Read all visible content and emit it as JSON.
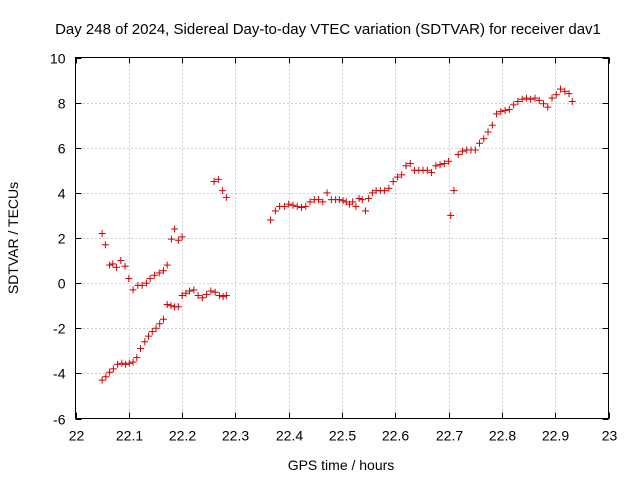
{
  "chart_data": {
    "type": "scatter",
    "title": "Day 248 of 2024, Sidereal Day-to-day VTEC variation (SDTVAR) for receiver dav1",
    "xlabel": "GPS time / hours",
    "ylabel": "SDTVAR / TECUs",
    "xlim": [
      22,
      23
    ],
    "ylim": [
      -6,
      10
    ],
    "xticks": [
      22,
      22.1,
      22.2,
      22.3,
      22.4,
      22.5,
      22.6,
      22.7,
      22.8,
      22.9,
      23
    ],
    "xtick_labels": [
      "22",
      "22.1",
      "22.2",
      "22.3",
      "22.4",
      "22.5",
      "22.6",
      "22.7",
      "22.8",
      "22.9",
      "23"
    ],
    "yticks": [
      -6,
      -4,
      -2,
      0,
      2,
      4,
      6,
      8,
      10
    ],
    "ytick_labels": [
      "-6",
      "-4",
      "-2",
      "0",
      "2",
      "4",
      "6",
      "8",
      "10"
    ],
    "grid": true,
    "marker": "+",
    "color": "#d00000",
    "series": [
      {
        "name": "dav1",
        "points": [
          [
            22.05,
            2.2
          ],
          [
            22.056,
            1.7
          ],
          [
            22.064,
            0.8
          ],
          [
            22.07,
            0.85
          ],
          [
            22.077,
            0.7
          ],
          [
            22.085,
            1.0
          ],
          [
            22.093,
            0.75
          ],
          [
            22.1,
            0.2
          ],
          [
            22.108,
            -0.3
          ],
          [
            22.117,
            -0.1
          ],
          [
            22.125,
            -0.1
          ],
          [
            22.133,
            0.0
          ],
          [
            22.14,
            0.2
          ],
          [
            22.148,
            0.35
          ],
          [
            22.157,
            0.45
          ],
          [
            22.165,
            0.55
          ],
          [
            22.172,
            0.8
          ],
          [
            22.18,
            1.95
          ],
          [
            22.186,
            2.4
          ],
          [
            22.193,
            1.9
          ],
          [
            22.2,
            2.05
          ],
          [
            22.05,
            -4.3
          ],
          [
            22.057,
            -4.15
          ],
          [
            22.064,
            -3.95
          ],
          [
            22.071,
            -3.8
          ],
          [
            22.079,
            -3.6
          ],
          [
            22.087,
            -3.55
          ],
          [
            22.094,
            -3.6
          ],
          [
            22.101,
            -3.55
          ],
          [
            22.108,
            -3.5
          ],
          [
            22.115,
            -3.3
          ],
          [
            22.122,
            -2.9
          ],
          [
            22.13,
            -2.6
          ],
          [
            22.137,
            -2.35
          ],
          [
            22.144,
            -2.15
          ],
          [
            22.151,
            -2.0
          ],
          [
            22.158,
            -1.8
          ],
          [
            22.165,
            -1.6
          ],
          [
            22.172,
            -0.95
          ],
          [
            22.179,
            -1.0
          ],
          [
            22.186,
            -1.05
          ],
          [
            22.193,
            -1.05
          ],
          [
            22.2,
            -0.55
          ],
          [
            22.207,
            -0.45
          ],
          [
            22.214,
            -0.35
          ],
          [
            22.222,
            -0.3
          ],
          [
            22.23,
            -0.55
          ],
          [
            22.238,
            -0.65
          ],
          [
            22.246,
            -0.5
          ],
          [
            22.254,
            -0.35
          ],
          [
            22.262,
            -0.4
          ],
          [
            22.27,
            -0.55
          ],
          [
            22.277,
            -0.6
          ],
          [
            22.283,
            -0.55
          ],
          [
            22.26,
            4.5
          ],
          [
            22.268,
            4.6
          ],
          [
            22.276,
            4.1
          ],
          [
            22.283,
            3.8
          ],
          [
            22.366,
            2.8
          ],
          [
            22.375,
            3.2
          ],
          [
            22.383,
            3.4
          ],
          [
            22.392,
            3.4
          ],
          [
            22.4,
            3.5
          ],
          [
            22.408,
            3.45
          ],
          [
            22.416,
            3.4
          ],
          [
            22.424,
            3.35
          ],
          [
            22.432,
            3.4
          ],
          [
            22.44,
            3.6
          ],
          [
            22.448,
            3.7
          ],
          [
            22.456,
            3.7
          ],
          [
            22.464,
            3.6
          ],
          [
            22.472,
            4.0
          ],
          [
            22.48,
            3.7
          ],
          [
            22.488,
            3.7
          ],
          [
            22.495,
            3.7
          ],
          [
            22.502,
            3.65
          ],
          [
            22.508,
            3.6
          ],
          [
            22.514,
            3.5
          ],
          [
            22.52,
            3.6
          ],
          [
            22.526,
            3.4
          ],
          [
            22.532,
            3.75
          ],
          [
            22.538,
            3.7
          ],
          [
            22.544,
            3.2
          ],
          [
            22.55,
            3.75
          ],
          [
            22.557,
            4.0
          ],
          [
            22.564,
            4.1
          ],
          [
            22.572,
            4.1
          ],
          [
            22.58,
            4.1
          ],
          [
            22.588,
            4.2
          ],
          [
            22.596,
            4.5
          ],
          [
            22.604,
            4.7
          ],
          [
            22.612,
            4.8
          ],
          [
            22.62,
            5.2
          ],
          [
            22.628,
            5.3
          ],
          [
            22.636,
            5.0
          ],
          [
            22.644,
            5.0
          ],
          [
            22.652,
            5.0
          ],
          [
            22.66,
            5.0
          ],
          [
            22.668,
            4.9
          ],
          [
            22.676,
            5.2
          ],
          [
            22.684,
            5.25
          ],
          [
            22.692,
            5.3
          ],
          [
            22.7,
            5.4
          ],
          [
            22.704,
            3.0
          ],
          [
            22.71,
            4.1
          ],
          [
            22.718,
            5.7
          ],
          [
            22.726,
            5.85
          ],
          [
            22.734,
            5.9
          ],
          [
            22.742,
            5.9
          ],
          [
            22.75,
            5.9
          ],
          [
            22.758,
            6.2
          ],
          [
            22.766,
            6.4
          ],
          [
            22.774,
            6.7
          ],
          [
            22.782,
            7.0
          ],
          [
            22.79,
            7.5
          ],
          [
            22.798,
            7.6
          ],
          [
            22.806,
            7.65
          ],
          [
            22.814,
            7.7
          ],
          [
            22.822,
            7.9
          ],
          [
            22.83,
            8.05
          ],
          [
            22.838,
            8.15
          ],
          [
            22.846,
            8.2
          ],
          [
            22.854,
            8.15
          ],
          [
            22.862,
            8.2
          ],
          [
            22.87,
            8.1
          ],
          [
            22.878,
            7.95
          ],
          [
            22.886,
            7.8
          ],
          [
            22.894,
            8.2
          ],
          [
            22.902,
            8.35
          ],
          [
            22.91,
            8.6
          ],
          [
            22.918,
            8.5
          ],
          [
            22.926,
            8.4
          ],
          [
            22.932,
            8.05
          ]
        ]
      }
    ]
  }
}
